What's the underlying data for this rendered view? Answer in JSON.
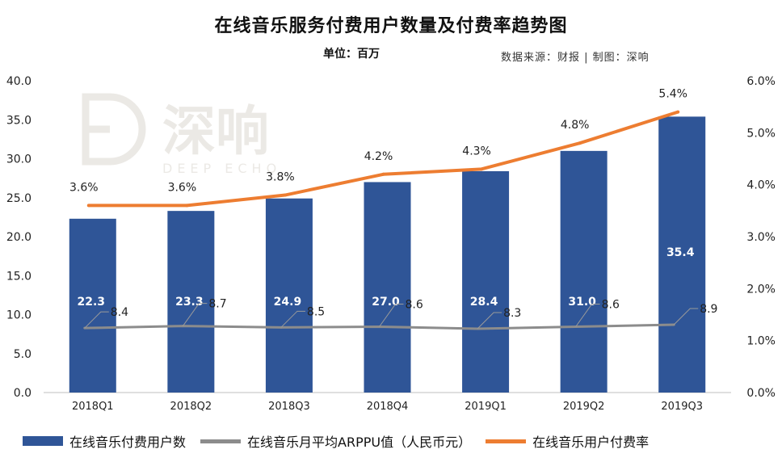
{
  "header": {
    "title": "在线音乐服务付费用户数量及付费率趋势图",
    "unit": "单位：百万",
    "source": "数据来源：财报 | 制图：深响"
  },
  "watermark": {
    "text": "深响",
    "sub": "DEEP ECHO"
  },
  "colors": {
    "bar": "#2f5597",
    "arppu": "#8c8c8c",
    "rate": "#ed7d31"
  },
  "legend": {
    "bar": "在线音乐付费用户数",
    "arppu": "在线音乐月平均ARPPU值（人民币元）",
    "rate": "在线音乐用户付费率"
  },
  "chart_data": {
    "type": "bar",
    "categories": [
      "2018Q1",
      "2018Q2",
      "2018Q3",
      "2018Q4",
      "2019Q1",
      "2019Q2",
      "2019Q3"
    ],
    "ylim": [
      0,
      40
    ],
    "y_ticks": [
      "0.0",
      "5.0",
      "10.0",
      "15.0",
      "20.0",
      "25.0",
      "30.0",
      "35.0",
      "40.0"
    ],
    "y2lim": [
      0,
      6
    ],
    "y2_ticks": [
      "0.0%",
      "1.0%",
      "2.0%",
      "3.0%",
      "4.0%",
      "5.0%",
      "6.0%"
    ],
    "grid": false,
    "legend_position": "bottom",
    "series": [
      {
        "name": "在线音乐付费用户数",
        "type": "bar",
        "axis": "left",
        "values": [
          22.3,
          23.3,
          24.9,
          27.0,
          28.4,
          31.0,
          35.4
        ],
        "labels": [
          "22.3",
          "23.3",
          "24.9",
          "27.0",
          "28.4",
          "31.0",
          "35.4"
        ]
      },
      {
        "name": "在线音乐月平均ARPPU值（人民币元）",
        "type": "line",
        "axis": "left",
        "values": [
          8.4,
          8.7,
          8.5,
          8.6,
          8.3,
          8.6,
          8.9
        ],
        "labels": [
          "8.4",
          "8.7",
          "8.5",
          "8.6",
          "8.3",
          "8.6",
          "8.9"
        ]
      },
      {
        "name": "在线音乐用户付费率",
        "type": "line",
        "axis": "right",
        "values": [
          3.6,
          3.6,
          3.8,
          4.2,
          4.3,
          4.8,
          5.4
        ],
        "labels": [
          "3.6%",
          "3.6%",
          "3.8%",
          "4.2%",
          "4.3%",
          "4.8%",
          "5.4%"
        ]
      }
    ]
  }
}
